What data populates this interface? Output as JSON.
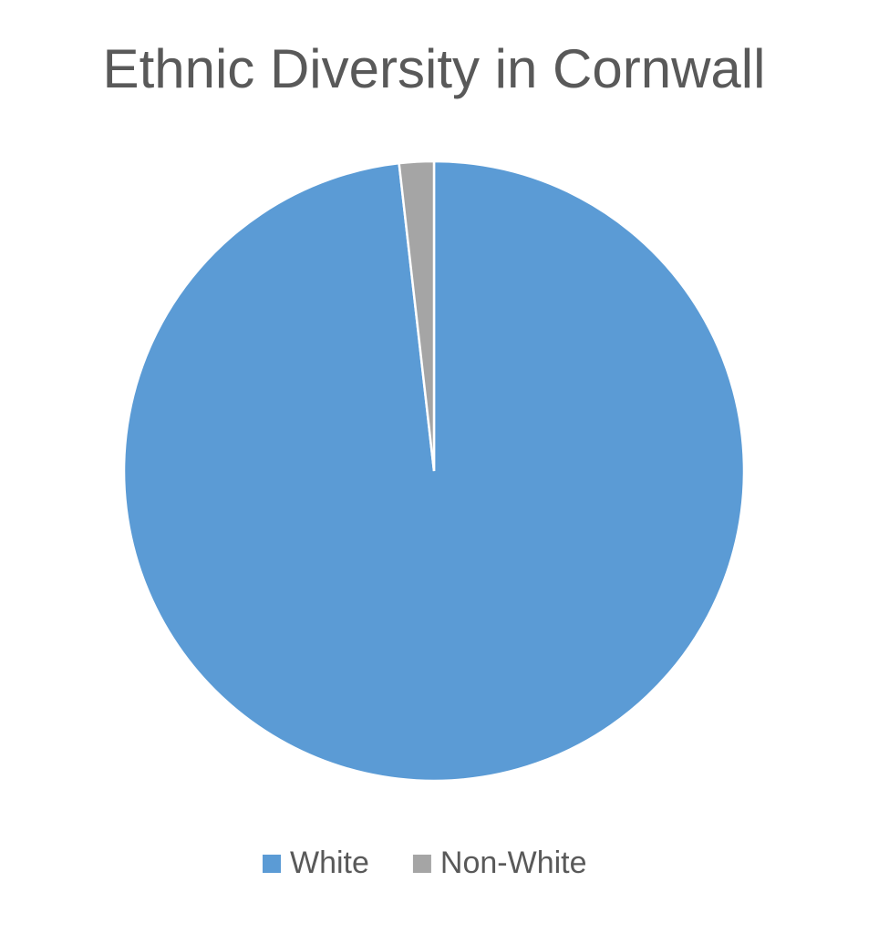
{
  "chart_data": {
    "type": "pie",
    "title": "Ethnic Diversity in Cornwall",
    "categories": [
      "White",
      "Non-White"
    ],
    "values": [
      98.2,
      1.8
    ],
    "colors": [
      "#5b9bd5",
      "#a5a5a5"
    ],
    "legend": "bottom"
  }
}
